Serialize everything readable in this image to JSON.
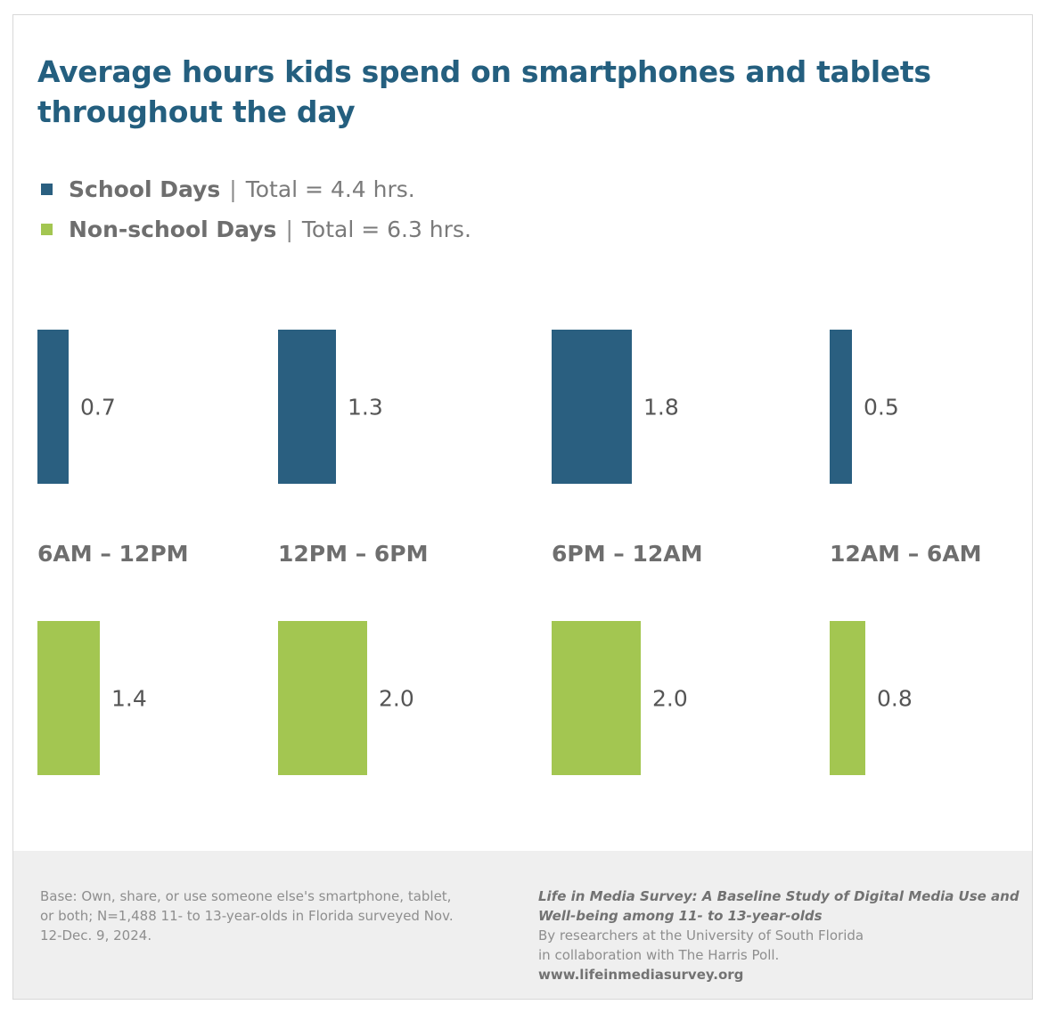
{
  "chart_data": {
    "type": "bar",
    "title": "Average hours kids spend on smartphones and tablets throughout the day",
    "categories": [
      "6AM – 12PM",
      "12PM – 6PM",
      "6PM – 12AM",
      "12AM – 6AM"
    ],
    "series": [
      {
        "name": "School Days",
        "total_label": "Total = 4.4 hrs.",
        "color": "#2a5f80",
        "values": [
          0.7,
          1.3,
          1.8,
          0.5
        ],
        "labels": [
          "0.7",
          "1.3",
          "1.8",
          "0.5"
        ]
      },
      {
        "name": "Non-school Days",
        "total_label": "Total = 6.3 hrs.",
        "color": "#a3c651",
        "values": [
          1.4,
          2.0,
          2.0,
          0.8
        ],
        "labels": [
          "1.4",
          "2.0",
          "2.0",
          "0.8"
        ]
      }
    ],
    "orientation": "horizontal-length bars",
    "legend": "top-left",
    "grid": false
  },
  "footer": {
    "base_note": "Base: Own, share, or use someone else's smartphone, tablet, or both; N=1,488 11- to 13-year-olds in Florida surveyed Nov. 12-Dec. 9, 2024.",
    "source_title": "Life in Media Survey: A Baseline Study of Digital Media Use and Well-being among 11- to 13-year-olds",
    "source_line1": "By researchers at the University of South Florida",
    "source_line2": "in collaboration with The Harris Poll.",
    "url": "www.lifeinmediasurvey.org"
  }
}
